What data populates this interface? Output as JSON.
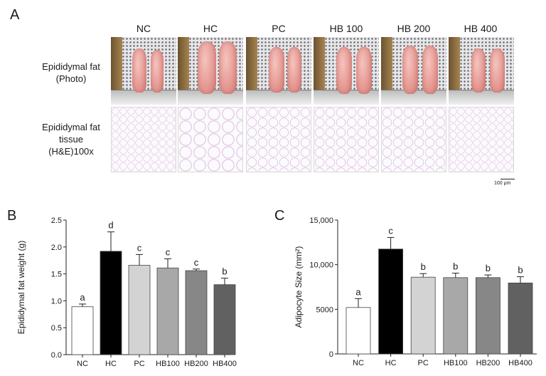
{
  "panel_a": {
    "letter": "A",
    "groups": [
      "NC",
      "HC",
      "PC",
      "HB 100",
      "HB 200",
      "HB 400"
    ],
    "row_labels": {
      "photo": [
        "Epididymal fat",
        "(Photo)"
      ],
      "histology": [
        "Epididymal fat",
        "tissue",
        "(H&E)100x"
      ]
    },
    "scale_bar": "100 μm"
  },
  "panel_b": {
    "letter": "B"
  },
  "panel_c": {
    "letter": "C"
  },
  "chart_data": [
    {
      "type": "bar",
      "categories": [
        "NC",
        "HC",
        "PC",
        "HB100",
        "HB200",
        "HB400"
      ],
      "values": [
        0.89,
        1.92,
        1.66,
        1.61,
        1.56,
        1.3
      ],
      "errors": [
        0.05,
        0.36,
        0.2,
        0.17,
        0.03,
        0.12
      ],
      "significance_letters": [
        "a",
        "d",
        "c",
        "c",
        "c",
        "b"
      ],
      "bar_colors": [
        "#ffffff",
        "#000000",
        "#d3d3d3",
        "#a8a8a8",
        "#878787",
        "#616161"
      ],
      "xlabel": "",
      "ylabel": "Epididymal fat weight (g)",
      "ylim": [
        0,
        2.5
      ],
      "yticks": [
        "0.0",
        "0.5",
        "1.0",
        "1.5",
        "2.0",
        "2.5"
      ],
      "ytick_values": [
        0,
        0.5,
        1.0,
        1.5,
        2.0,
        2.5
      ]
    },
    {
      "type": "bar",
      "categories": [
        "NC",
        "HC",
        "PC",
        "HB100",
        "HB200",
        "HB400"
      ],
      "values": [
        5200,
        11750,
        8600,
        8550,
        8550,
        7950
      ],
      "errors": [
        1000,
        1300,
        400,
        500,
        300,
        700
      ],
      "significance_letters": [
        "a",
        "c",
        "b",
        "b",
        "b",
        "b"
      ],
      "bar_colors": [
        "#ffffff",
        "#000000",
        "#d3d3d3",
        "#a8a8a8",
        "#878787",
        "#616161"
      ],
      "xlabel": "",
      "ylabel": "Adipocyte Size (mm²)",
      "ylim": [
        0,
        15000
      ],
      "yticks": [
        "0",
        "5000",
        "10,000",
        "15,000"
      ],
      "ytick_values": [
        0,
        5000,
        10000,
        15000
      ]
    }
  ]
}
